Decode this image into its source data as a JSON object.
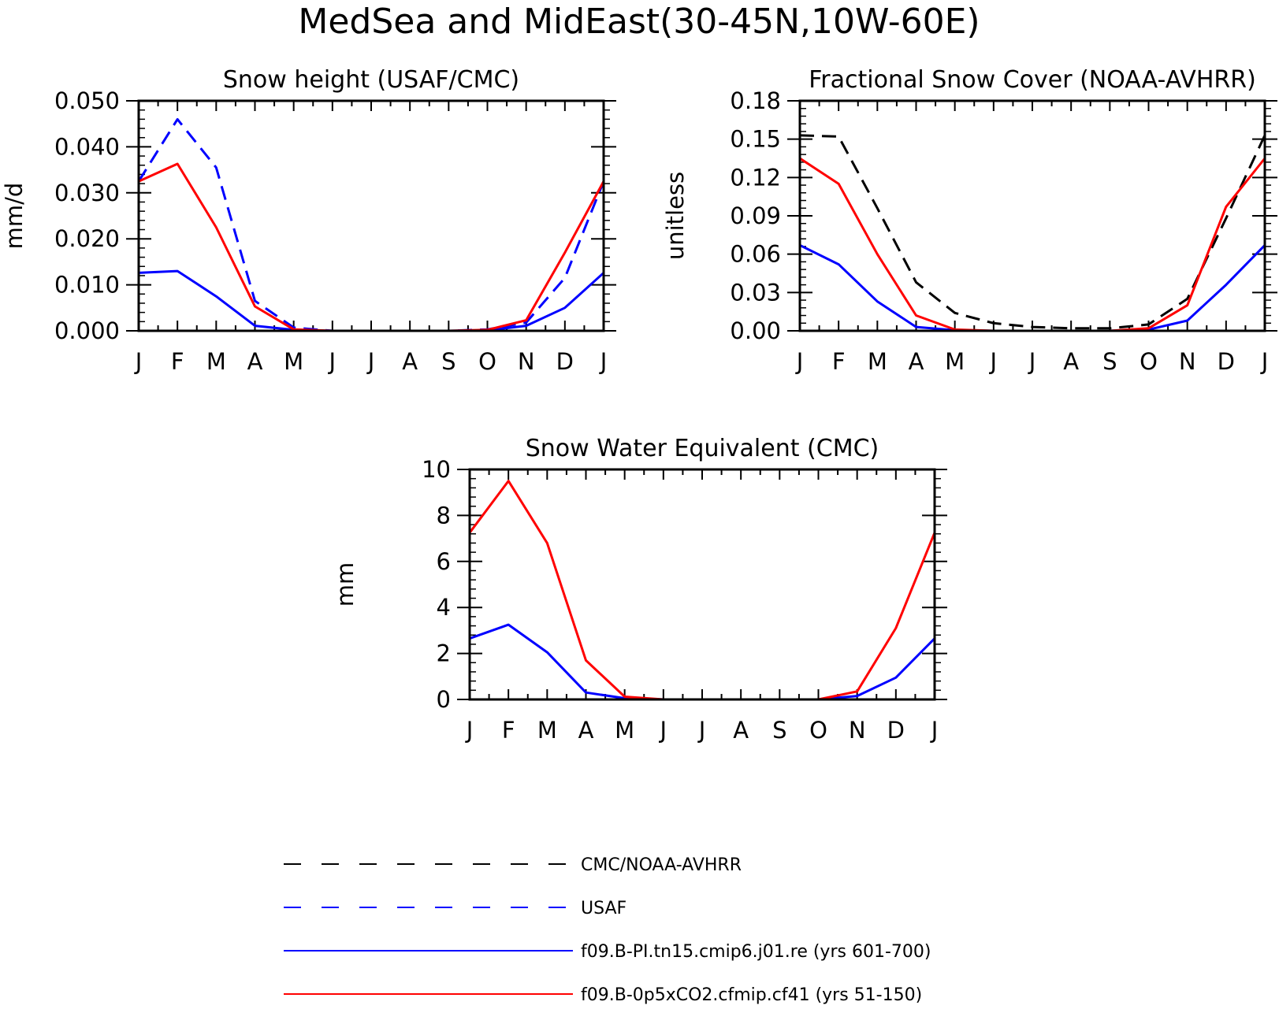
{
  "figure": {
    "title": "MedSea and MidEast(30-45N,10W-60E)"
  },
  "months": [
    "J",
    "F",
    "M",
    "A",
    "M",
    "J",
    "J",
    "A",
    "S",
    "O",
    "N",
    "D",
    "J"
  ],
  "colors": {
    "obs_black": "#000000",
    "usaf_blue": "#0000ff",
    "model_blue": "#0000ff",
    "model_red": "#ff0000"
  },
  "chart_data": [
    {
      "type": "line",
      "title": "Snow height (USAF/CMC)",
      "ylabel": "mm/d",
      "ylim": [
        0,
        0.05
      ],
      "yticks": [
        0,
        0.01,
        0.02,
        0.03,
        0.04,
        0.05
      ],
      "ytick_labels": [
        "0.000",
        "0.010",
        "0.020",
        "0.030",
        "0.040",
        "0.050"
      ],
      "x": [
        "J",
        "F",
        "M",
        "A",
        "M",
        "J",
        "J",
        "A",
        "S",
        "O",
        "N",
        "D",
        "J"
      ],
      "series": [
        {
          "name": "CMC/NOAA-AVHRR",
          "style": "dash",
          "color": "#000000",
          "values": [
            0,
            0,
            0,
            0,
            0,
            0,
            0,
            0,
            0,
            0,
            0,
            0,
            0
          ]
        },
        {
          "name": "USAF",
          "style": "dash",
          "color": "#0000ff",
          "values": [
            0.0325,
            0.046,
            0.0355,
            0.0065,
            0.0007,
            0.0,
            0.0,
            0.0,
            0.0,
            0.0003,
            0.0018,
            0.0115,
            0.0325
          ]
        },
        {
          "name": "f09.B-PI.tn15.cmip6.j01.re (yrs 601-700)",
          "style": "solid",
          "color": "#0000ff",
          "values": [
            0.0126,
            0.013,
            0.0075,
            0.0011,
            0.0002,
            0.0,
            0.0,
            0.0,
            0.0,
            0.0001,
            0.0011,
            0.005,
            0.0126
          ]
        },
        {
          "name": "f09.B-0p5xCO2.cfmip.cf41 (yrs 51-150)",
          "style": "solid",
          "color": "#ff0000",
          "values": [
            0.0325,
            0.0363,
            0.0225,
            0.0053,
            0.0003,
            0.0,
            0.0,
            0.0,
            0.0,
            0.0002,
            0.0023,
            0.017,
            0.0325
          ]
        }
      ]
    },
    {
      "type": "line",
      "title": "Fractional Snow Cover (NOAA-AVHRR)",
      "ylabel": "unitless",
      "ylim": [
        0,
        0.18
      ],
      "yticks": [
        0,
        0.03,
        0.06,
        0.09,
        0.12,
        0.15,
        0.18
      ],
      "ytick_labels": [
        "0.00",
        "0.03",
        "0.06",
        "0.09",
        "0.12",
        "0.15",
        "0.18"
      ],
      "x": [
        "J",
        "F",
        "M",
        "A",
        "M",
        "J",
        "J",
        "A",
        "S",
        "O",
        "N",
        "D",
        "J"
      ],
      "series": [
        {
          "name": "CMC/NOAA-AVHRR",
          "style": "dash",
          "color": "#000000",
          "values": [
            0.153,
            0.152,
            0.096,
            0.038,
            0.014,
            0.006,
            0.003,
            0.002,
            0.002,
            0.005,
            0.025,
            0.088,
            0.153
          ]
        },
        {
          "name": "f09.B-PI.tn15.cmip6.j01.re (yrs 601-700)",
          "style": "solid",
          "color": "#0000ff",
          "values": [
            0.067,
            0.052,
            0.023,
            0.003,
            0.0005,
            0.0,
            0.0,
            0.0,
            0.0,
            0.001,
            0.008,
            0.036,
            0.067
          ]
        },
        {
          "name": "f09.B-0p5xCO2.cfmip.cf41 (yrs 51-150)",
          "style": "solid",
          "color": "#ff0000",
          "values": [
            0.135,
            0.115,
            0.06,
            0.012,
            0.001,
            0.0,
            0.0,
            0.0,
            0.0,
            0.002,
            0.02,
            0.097,
            0.135
          ]
        }
      ]
    },
    {
      "type": "line",
      "title": "Snow Water Equivalent (CMC)",
      "ylabel": "mm",
      "ylim": [
        0,
        10
      ],
      "yticks": [
        0,
        2,
        4,
        6,
        8,
        10
      ],
      "ytick_labels": [
        "0",
        "2",
        "4",
        "6",
        "8",
        "10"
      ],
      "x": [
        "J",
        "F",
        "M",
        "A",
        "M",
        "J",
        "J",
        "A",
        "S",
        "O",
        "N",
        "D",
        "J"
      ],
      "series": [
        {
          "name": "CMC/NOAA-AVHRR",
          "style": "dash",
          "color": "#000000",
          "values": [
            0,
            0,
            0,
            0,
            0,
            0,
            0,
            0,
            0,
            0,
            0,
            0,
            0
          ]
        },
        {
          "name": "f09.B-PI.tn15.cmip6.j01.re (yrs 601-700)",
          "style": "solid",
          "color": "#0000ff",
          "values": [
            2.65,
            3.25,
            2.05,
            0.3,
            0.05,
            0.0,
            0.0,
            0.0,
            0.0,
            0.0,
            0.15,
            0.95,
            2.65
          ]
        },
        {
          "name": "f09.B-0p5xCO2.cfmip.cf41 (yrs 51-150)",
          "style": "solid",
          "color": "#ff0000",
          "values": [
            7.25,
            9.5,
            6.8,
            1.7,
            0.12,
            0.0,
            0.0,
            0.0,
            0.0,
            0.0,
            0.35,
            3.1,
            7.25
          ]
        }
      ]
    }
  ],
  "legend": [
    {
      "label": "CMC/NOAA-AVHRR",
      "style": "dash",
      "color": "#000000"
    },
    {
      "label": "USAF",
      "style": "dash",
      "color": "#0000ff"
    },
    {
      "label": "f09.B-PI.tn15.cmip6.j01.re (yrs 601-700)",
      "style": "solid",
      "color": "#0000ff"
    },
    {
      "label": "f09.B-0p5xCO2.cfmip.cf41 (yrs 51-150)",
      "style": "solid",
      "color": "#ff0000"
    }
  ]
}
